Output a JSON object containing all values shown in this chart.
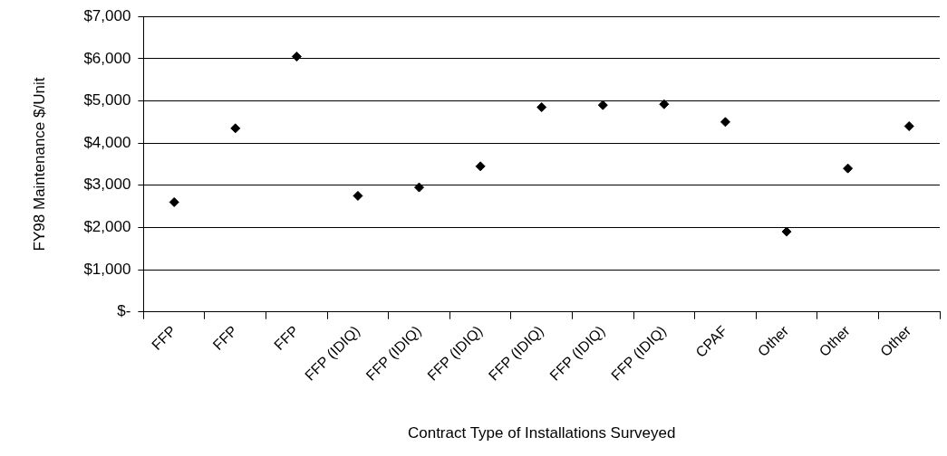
{
  "chart_data": {
    "type": "scatter",
    "xlabel": "Contract Type of Installations Surveyed",
    "ylabel": "FY98 Maintenance $/Unit",
    "categories": [
      "FFP",
      "FFP",
      "FFP",
      "FFP (IDIQ)",
      "FFP (IDIQ)",
      "FFP (IDIQ)",
      "FFP (IDIQ)",
      "FFP (IDIQ)",
      "FFP (IDIQ)",
      "CPAF",
      "Other",
      "Other",
      "Other"
    ],
    "values": [
      2600,
      4350,
      6050,
      2750,
      2950,
      3450,
      4850,
      4900,
      4920,
      4500,
      1900,
      3400,
      4400
    ],
    "color": "#000000",
    "marker": "diamond",
    "grid": "y",
    "legend": false,
    "ylim": [
      0,
      7000
    ],
    "yticks": [
      {
        "value": 0,
        "label": "$-"
      },
      {
        "value": 1000,
        "label": "$1,000"
      },
      {
        "value": 2000,
        "label": "$2,000"
      },
      {
        "value": 3000,
        "label": "$3,000"
      },
      {
        "value": 4000,
        "label": "$4,000"
      },
      {
        "value": 5000,
        "label": "$5,000"
      },
      {
        "value": 6000,
        "label": "$6,000"
      },
      {
        "value": 7000,
        "label": "$7,000"
      }
    ]
  }
}
